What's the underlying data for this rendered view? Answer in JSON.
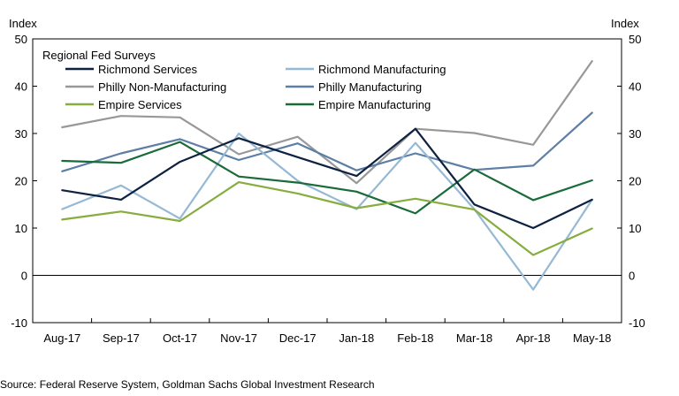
{
  "chart_data": {
    "type": "line",
    "legend_title": "Regional Fed Surveys",
    "y_unit_left": "Index",
    "y_unit_right": "Index",
    "ylim": [
      -10,
      50
    ],
    "yticks": [
      -10,
      0,
      10,
      20,
      30,
      40,
      50
    ],
    "categories": [
      "Aug-17",
      "Sep-17",
      "Oct-17",
      "Nov-17",
      "Dec-17",
      "Jan-18",
      "Feb-18",
      "Mar-18",
      "Apr-18",
      "May-18"
    ],
    "grid": false,
    "legend_position": "top-left",
    "series": [
      {
        "name": "Richmond Services",
        "color": "#0d2140",
        "values": [
          18,
          16,
          24,
          29,
          25,
          21,
          31,
          15,
          10,
          16
        ]
      },
      {
        "name": "Richmond Manufacturing",
        "color": "#95b9d4",
        "values": [
          14,
          19,
          12,
          30,
          20,
          14,
          28,
          14,
          -3,
          16
        ]
      },
      {
        "name": "Philly Non-Manufacturing",
        "color": "#989898",
        "values": [
          31.3,
          33.7,
          33.4,
          25.6,
          29.3,
          19.5,
          31,
          30.1,
          27.6,
          45.3
        ]
      },
      {
        "name": "Philly Manufacturing",
        "color": "#5d7ea5",
        "values": [
          22,
          25.8,
          28.8,
          24.4,
          27.9,
          22.2,
          25.8,
          22.3,
          23.2,
          34.4
        ]
      },
      {
        "name": "Empire Services",
        "color": "#86ad3e",
        "values": [
          11.8,
          13.5,
          11.5,
          19.7,
          17.3,
          14.2,
          16.2,
          13.9,
          4.3,
          9.9
        ]
      },
      {
        "name": "Empire Manufacturing",
        "color": "#1a6b3a",
        "values": [
          24.2,
          23.8,
          28.2,
          20.9,
          19.6,
          17.7,
          13.1,
          22.4,
          15.9,
          20.1
        ]
      }
    ]
  },
  "source_note": "Source: Federal Reserve System, Goldman Sachs Global Investment Research"
}
